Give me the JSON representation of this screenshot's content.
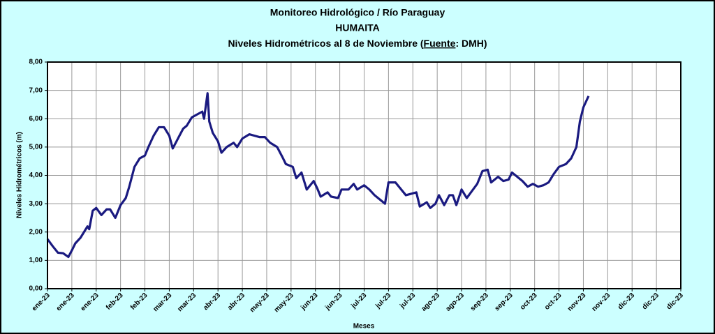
{
  "chart_data": {
    "type": "line",
    "title": "Monitoreo Hidrológico / Río Paraguay",
    "subtitle": "HUMAITA",
    "subtitle_parts": [
      "Niveles Hidrométricos  al 8 de Noviembre (",
      "Fuente",
      ": DMH)"
    ],
    "x_label": "Meses",
    "y_label": "Niveles Hidrométricos (m)",
    "xlim": [
      0,
      364
    ],
    "xticks": [
      {
        "value": 0,
        "label": "ene-23"
      },
      {
        "value": 14,
        "label": "ene-23"
      },
      {
        "value": 28,
        "label": "ene-23"
      },
      {
        "value": 42,
        "label": "feb-23"
      },
      {
        "value": 56,
        "label": "feb-23"
      },
      {
        "value": 70,
        "label": "mar-23"
      },
      {
        "value": 84,
        "label": "mar-23"
      },
      {
        "value": 98,
        "label": "abr-23"
      },
      {
        "value": 112,
        "label": "abr-23"
      },
      {
        "value": 126,
        "label": "may-23"
      },
      {
        "value": 140,
        "label": "may-23"
      },
      {
        "value": 154,
        "label": "jun-23"
      },
      {
        "value": 168,
        "label": "jun-23"
      },
      {
        "value": 182,
        "label": "jul-23"
      },
      {
        "value": 196,
        "label": "jul-23"
      },
      {
        "value": 210,
        "label": "jul-23"
      },
      {
        "value": 224,
        "label": "ago-23"
      },
      {
        "value": 238,
        "label": "ago-23"
      },
      {
        "value": 252,
        "label": "sep-23"
      },
      {
        "value": 266,
        "label": "sep-23"
      },
      {
        "value": 280,
        "label": "oct-23"
      },
      {
        "value": 294,
        "label": "oct-23"
      },
      {
        "value": 308,
        "label": "nov-23"
      },
      {
        "value": 322,
        "label": "nov-23"
      },
      {
        "value": 336,
        "label": "dic-23"
      },
      {
        "value": 350,
        "label": "dic-23"
      },
      {
        "value": 364,
        "label": "dic-23"
      }
    ],
    "ylim": [
      0,
      8
    ],
    "yticks": [
      {
        "value": 0,
        "label": "0,00"
      },
      {
        "value": 1,
        "label": "1,00"
      },
      {
        "value": 2,
        "label": "2,00"
      },
      {
        "value": 3,
        "label": "3,00"
      },
      {
        "value": 4,
        "label": "4,00"
      },
      {
        "value": 5,
        "label": "5,00"
      },
      {
        "value": 6,
        "label": "6,00"
      },
      {
        "value": 7,
        "label": "7,00"
      },
      {
        "value": 8,
        "label": "8,00"
      }
    ],
    "grid": true,
    "x": [
      0,
      3,
      6,
      9,
      12,
      14,
      16,
      19,
      21,
      23,
      24,
      26,
      28,
      31,
      34,
      36,
      39,
      42,
      45,
      47,
      50,
      53,
      56,
      58,
      61,
      64,
      67,
      70,
      72,
      75,
      78,
      80,
      83,
      86,
      89,
      90,
      92,
      93,
      95,
      98,
      100,
      103,
      107,
      109,
      112,
      116,
      119,
      122,
      125,
      128,
      132,
      135,
      137,
      141,
      143,
      146,
      149,
      153,
      155,
      157,
      161,
      163,
      167,
      169,
      173,
      176,
      178,
      182,
      185,
      188,
      190,
      194,
      196,
      200,
      202,
      206,
      209,
      212,
      214,
      218,
      220,
      223,
      225,
      228,
      231,
      233,
      235,
      238,
      241,
      244,
      247,
      250,
      253,
      255,
      259,
      262,
      265,
      267,
      270,
      273,
      276,
      279,
      282,
      285,
      288,
      291,
      294,
      298,
      301,
      304,
      306,
      308,
      311
    ],
    "series": [
      {
        "name": "HUMAITA",
        "color": "#1a1a80",
        "values": [
          1.75,
          1.5,
          1.27,
          1.25,
          1.12,
          1.35,
          1.6,
          1.8,
          2.0,
          2.2,
          2.1,
          2.75,
          2.85,
          2.6,
          2.8,
          2.8,
          2.5,
          2.95,
          3.2,
          3.6,
          4.3,
          4.6,
          4.7,
          5.0,
          5.4,
          5.7,
          5.7,
          5.4,
          4.95,
          5.3,
          5.65,
          5.75,
          6.05,
          6.15,
          6.25,
          6.0,
          6.9,
          5.9,
          5.5,
          5.2,
          4.8,
          5.0,
          5.15,
          5.0,
          5.3,
          5.45,
          5.4,
          5.35,
          5.35,
          5.15,
          5.0,
          4.65,
          4.4,
          4.3,
          3.9,
          4.1,
          3.5,
          3.8,
          3.55,
          3.25,
          3.4,
          3.25,
          3.2,
          3.5,
          3.5,
          3.7,
          3.5,
          3.65,
          3.5,
          3.3,
          3.2,
          3.0,
          3.75,
          3.75,
          3.6,
          3.3,
          3.35,
          3.4,
          2.9,
          3.05,
          2.85,
          3.0,
          3.3,
          2.95,
          3.3,
          3.3,
          2.95,
          3.5,
          3.2,
          3.45,
          3.7,
          4.15,
          4.2,
          3.75,
          3.95,
          3.8,
          3.85,
          4.1,
          3.95,
          3.8,
          3.6,
          3.7,
          3.6,
          3.65,
          3.75,
          4.05,
          4.3,
          4.4,
          4.6,
          5.0,
          5.9,
          6.4,
          6.8
        ]
      }
    ]
  }
}
